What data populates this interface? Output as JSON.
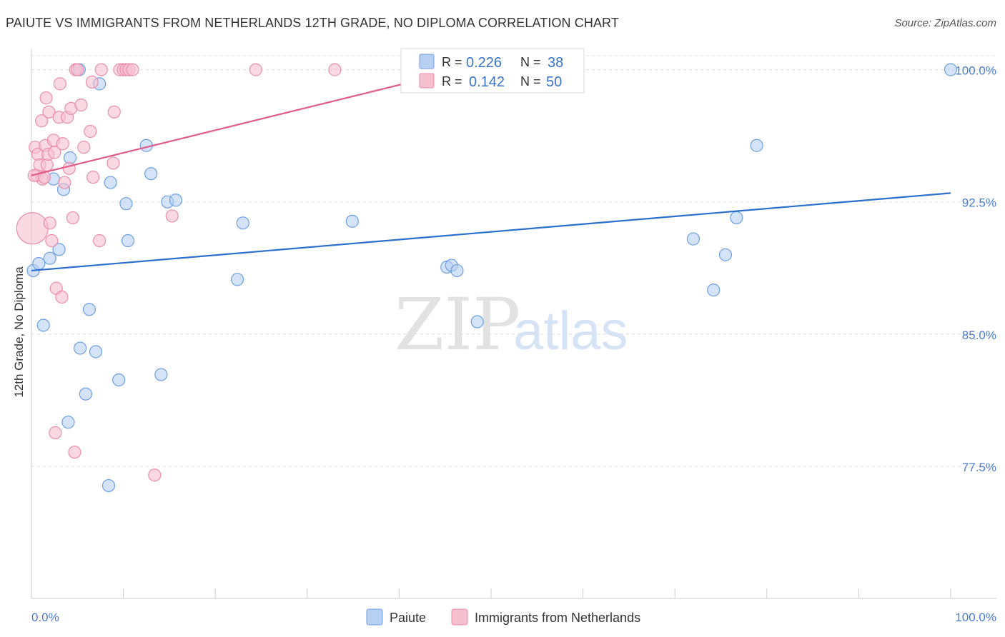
{
  "title": "PAIUTE VS IMMIGRANTS FROM NETHERLANDS 12TH GRADE, NO DIPLOMA CORRELATION CHART",
  "source": "Source: ZipAtlas.com",
  "watermark": {
    "zip": "ZIP",
    "atlas": "atlas"
  },
  "chart_data": {
    "type": "scatter",
    "ylabel": "12th Grade, No Diploma",
    "x_ticks": [
      "0.0%",
      "100.0%"
    ],
    "y_ticks": [
      {
        "value": 100.0,
        "label": "100.0%"
      },
      {
        "value": 92.5,
        "label": "92.5%"
      },
      {
        "value": 85.0,
        "label": "85.0%"
      },
      {
        "value": 77.5,
        "label": "77.5%"
      }
    ],
    "xlim": [
      0,
      100
    ],
    "ylim": [
      70.0,
      101.2
    ],
    "legend": {
      "r_label": "R =",
      "n_label": "N =",
      "entries": [
        {
          "name": "Paiute",
          "r": "0.226",
          "n": "38"
        },
        {
          "name": "Immigrants from Netherlands",
          "r": "0.142",
          "n": "50"
        }
      ]
    },
    "series": [
      {
        "name": "Paiute",
        "color": "#6e9fe0",
        "fill": "#b7d0f2",
        "line_color": "#2a6fcc",
        "trend": {
          "x0": 0,
          "y0": 88.6,
          "x1": 100,
          "y1": 93.0
        },
        "points": [
          {
            "x": 0.2,
            "y": 88.6
          },
          {
            "x": 0.8,
            "y": 89.0
          },
          {
            "x": 1.3,
            "y": 85.5
          },
          {
            "x": 2.0,
            "y": 89.3
          },
          {
            "x": 2.4,
            "y": 93.8
          },
          {
            "x": 3.0,
            "y": 89.8
          },
          {
            "x": 3.5,
            "y": 93.2
          },
          {
            "x": 4.0,
            "y": 80.0
          },
          {
            "x": 4.2,
            "y": 95.0
          },
          {
            "x": 5.2,
            "y": 100.0
          },
          {
            "x": 5.3,
            "y": 84.2
          },
          {
            "x": 5.9,
            "y": 81.6
          },
          {
            "x": 6.3,
            "y": 86.4
          },
          {
            "x": 7.0,
            "y": 84.0
          },
          {
            "x": 7.4,
            "y": 99.2
          },
          {
            "x": 8.4,
            "y": 76.4
          },
          {
            "x": 8.6,
            "y": 93.6
          },
          {
            "x": 9.5,
            "y": 82.4
          },
          {
            "x": 10.3,
            "y": 92.4
          },
          {
            "x": 10.5,
            "y": 90.3
          },
          {
            "x": 12.5,
            "y": 95.7
          },
          {
            "x": 13.0,
            "y": 94.1
          },
          {
            "x": 14.1,
            "y": 82.7
          },
          {
            "x": 14.8,
            "y": 92.5
          },
          {
            "x": 15.7,
            "y": 92.6
          },
          {
            "x": 22.4,
            "y": 88.1
          },
          {
            "x": 23.0,
            "y": 91.3
          },
          {
            "x": 34.9,
            "y": 91.4
          },
          {
            "x": 45.2,
            "y": 88.8
          },
          {
            "x": 45.7,
            "y": 88.9
          },
          {
            "x": 46.3,
            "y": 88.6
          },
          {
            "x": 48.5,
            "y": 85.7
          },
          {
            "x": 72.0,
            "y": 90.4
          },
          {
            "x": 74.2,
            "y": 87.5
          },
          {
            "x": 75.5,
            "y": 89.5
          },
          {
            "x": 76.7,
            "y": 91.6
          },
          {
            "x": 78.9,
            "y": 95.7
          },
          {
            "x": 100.0,
            "y": 100.0
          }
        ]
      },
      {
        "name": "Immigrants from Netherlands",
        "color": "#e98fac",
        "fill": "#f6bfd0",
        "line_color": "#e05a8a",
        "trend": {
          "x0": 0,
          "y0": 94.0,
          "x1": 40.5,
          "y1": 99.2
        },
        "points": [
          {
            "x": 0.1,
            "y": 91.0,
            "big": true
          },
          {
            "x": 0.4,
            "y": 95.6
          },
          {
            "x": 0.6,
            "y": 94.0
          },
          {
            "x": 0.7,
            "y": 95.2
          },
          {
            "x": 0.9,
            "y": 94.6
          },
          {
            "x": 1.1,
            "y": 97.1
          },
          {
            "x": 1.2,
            "y": 93.8
          },
          {
            "x": 1.5,
            "y": 95.7
          },
          {
            "x": 1.6,
            "y": 98.4
          },
          {
            "x": 1.7,
            "y": 94.6
          },
          {
            "x": 1.8,
            "y": 95.2
          },
          {
            "x": 1.9,
            "y": 97.6
          },
          {
            "x": 2.0,
            "y": 91.3
          },
          {
            "x": 2.2,
            "y": 90.3
          },
          {
            "x": 2.4,
            "y": 96.0
          },
          {
            "x": 2.5,
            "y": 95.3
          },
          {
            "x": 2.6,
            "y": 79.4
          },
          {
            "x": 2.7,
            "y": 87.6
          },
          {
            "x": 3.0,
            "y": 97.3
          },
          {
            "x": 3.1,
            "y": 99.2
          },
          {
            "x": 3.3,
            "y": 87.1
          },
          {
            "x": 3.4,
            "y": 95.8
          },
          {
            "x": 3.6,
            "y": 93.6
          },
          {
            "x": 3.9,
            "y": 97.3
          },
          {
            "x": 4.1,
            "y": 94.4
          },
          {
            "x": 4.3,
            "y": 97.8
          },
          {
            "x": 4.5,
            "y": 91.6
          },
          {
            "x": 4.7,
            "y": 78.3
          },
          {
            "x": 4.8,
            "y": 100.0
          },
          {
            "x": 5.0,
            "y": 100.0
          },
          {
            "x": 5.4,
            "y": 98.0
          },
          {
            "x": 5.7,
            "y": 95.6
          },
          {
            "x": 6.4,
            "y": 96.5
          },
          {
            "x": 6.6,
            "y": 99.3
          },
          {
            "x": 6.7,
            "y": 93.9
          },
          {
            "x": 7.4,
            "y": 90.3
          },
          {
            "x": 7.6,
            "y": 100.0
          },
          {
            "x": 8.9,
            "y": 94.7
          },
          {
            "x": 9.0,
            "y": 97.6
          },
          {
            "x": 9.6,
            "y": 100.0
          },
          {
            "x": 10.0,
            "y": 100.0
          },
          {
            "x": 10.3,
            "y": 100.0
          },
          {
            "x": 10.6,
            "y": 100.0
          },
          {
            "x": 11.0,
            "y": 100.0
          },
          {
            "x": 13.4,
            "y": 77.0
          },
          {
            "x": 15.3,
            "y": 91.7
          },
          {
            "x": 24.4,
            "y": 100.0
          },
          {
            "x": 33.0,
            "y": 100.0
          },
          {
            "x": 0.3,
            "y": 94.0
          },
          {
            "x": 1.4,
            "y": 93.9
          }
        ]
      }
    ]
  }
}
